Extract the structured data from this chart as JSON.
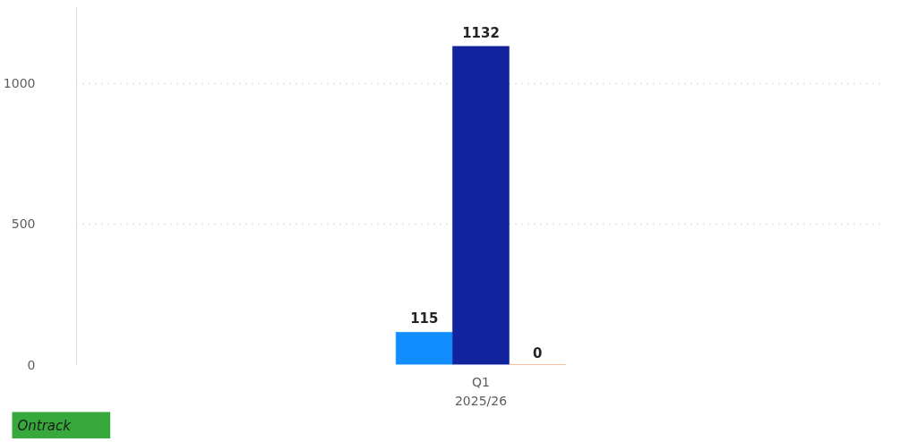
{
  "chart_data": {
    "type": "bar",
    "categories": [
      "Q1"
    ],
    "xlabel": "2025/26",
    "series": [
      {
        "color": "#118dff",
        "values": [
          115
        ]
      },
      {
        "color": "#12239e",
        "values": [
          1132
        ]
      },
      {
        "color": "#e66c37",
        "values": [
          0
        ]
      }
    ],
    "ylim": [
      0,
      1270
    ],
    "yticks": [
      0,
      500,
      1000
    ],
    "grid": "y",
    "data_labels": true,
    "annotations": [
      "Ontrack"
    ]
  }
}
